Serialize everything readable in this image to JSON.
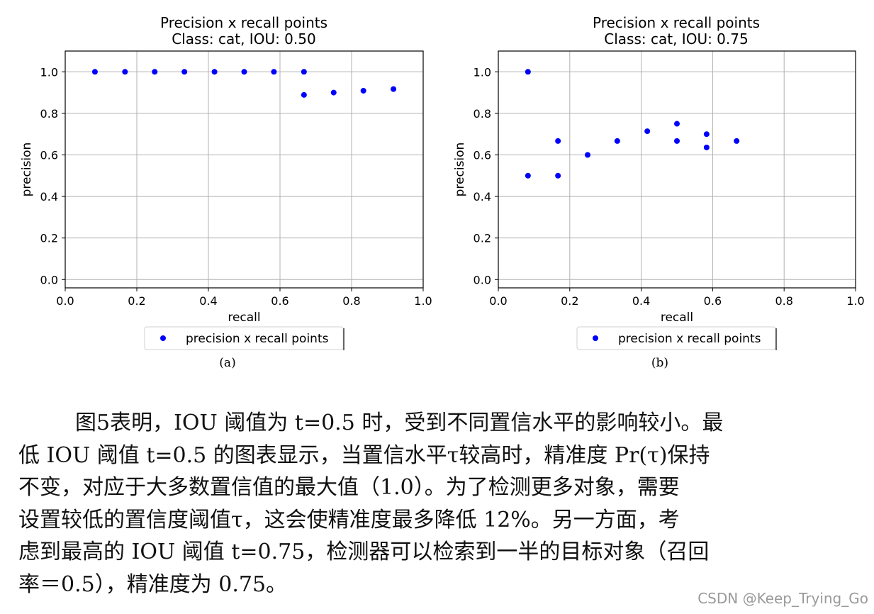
{
  "chart_data": [
    {
      "type": "scatter",
      "title": "Precision x recall points",
      "subtitle": "Class: cat, IOU: 0.50",
      "xlabel": "recall",
      "ylabel": "precision",
      "xlim": [
        0.0,
        1.0
      ],
      "ylim": [
        -0.04,
        1.1
      ],
      "xticks": [
        "0.0",
        "0.2",
        "0.4",
        "0.6",
        "0.8",
        "1.0"
      ],
      "yticks": [
        "0.0",
        "0.2",
        "0.4",
        "0.6",
        "0.8",
        "1.0"
      ],
      "grid": true,
      "legend_position": "bottom-center",
      "series": [
        {
          "name": "precision x recall points",
          "color": "#0000ff",
          "x": [
            0.083,
            0.167,
            0.25,
            0.333,
            0.417,
            0.5,
            0.583,
            0.667,
            0.667,
            0.75,
            0.833,
            0.917
          ],
          "y": [
            1.0,
            1.0,
            1.0,
            1.0,
            1.0,
            1.0,
            1.0,
            1.0,
            0.889,
            0.9,
            0.909,
            0.917
          ]
        }
      ],
      "caption": "(a)"
    },
    {
      "type": "scatter",
      "title": "Precision x recall points",
      "subtitle": "Class: cat, IOU: 0.75",
      "xlabel": "recall",
      "ylabel": "precision",
      "xlim": [
        0.0,
        1.0
      ],
      "ylim": [
        -0.04,
        1.1
      ],
      "xticks": [
        "0.0",
        "0.2",
        "0.4",
        "0.6",
        "0.8",
        "1.0"
      ],
      "yticks": [
        "0.0",
        "0.2",
        "0.4",
        "0.6",
        "0.8",
        "1.0"
      ],
      "grid": true,
      "legend_position": "bottom-center",
      "series": [
        {
          "name": "precision x recall points",
          "color": "#0000ff",
          "x": [
            0.083,
            0.083,
            0.167,
            0.167,
            0.25,
            0.333,
            0.417,
            0.5,
            0.5,
            0.583,
            0.583,
            0.667
          ],
          "y": [
            1.0,
            0.5,
            0.667,
            0.5,
            0.6,
            0.667,
            0.714,
            0.75,
            0.667,
            0.7,
            0.636,
            0.667
          ]
        }
      ],
      "caption": "(b)"
    }
  ],
  "paragraph": {
    "lines": [
      "图5表明，IOU 阈值为 t=0.5 时，受到不同置信水平的影响较小。最",
      "低 IOU 阈值 t=0.5 的图表显示，当置信水平τ较高时，精准度 Pr(τ)保持",
      "不变，对应于大多数置信值的最大值（1.0）。为了检测更多对象，需要",
      "设置较低的置信度阈值τ，这会使精准度最多降低 12%。另一方面，考",
      "虑到最高的 IOU 阈值 t=0.75，检测器可以检索到一半的目标对象（召回",
      "率＝0.5），精准度为 0.75。"
    ]
  },
  "watermark": "CSDN @Keep_Trying_Go"
}
